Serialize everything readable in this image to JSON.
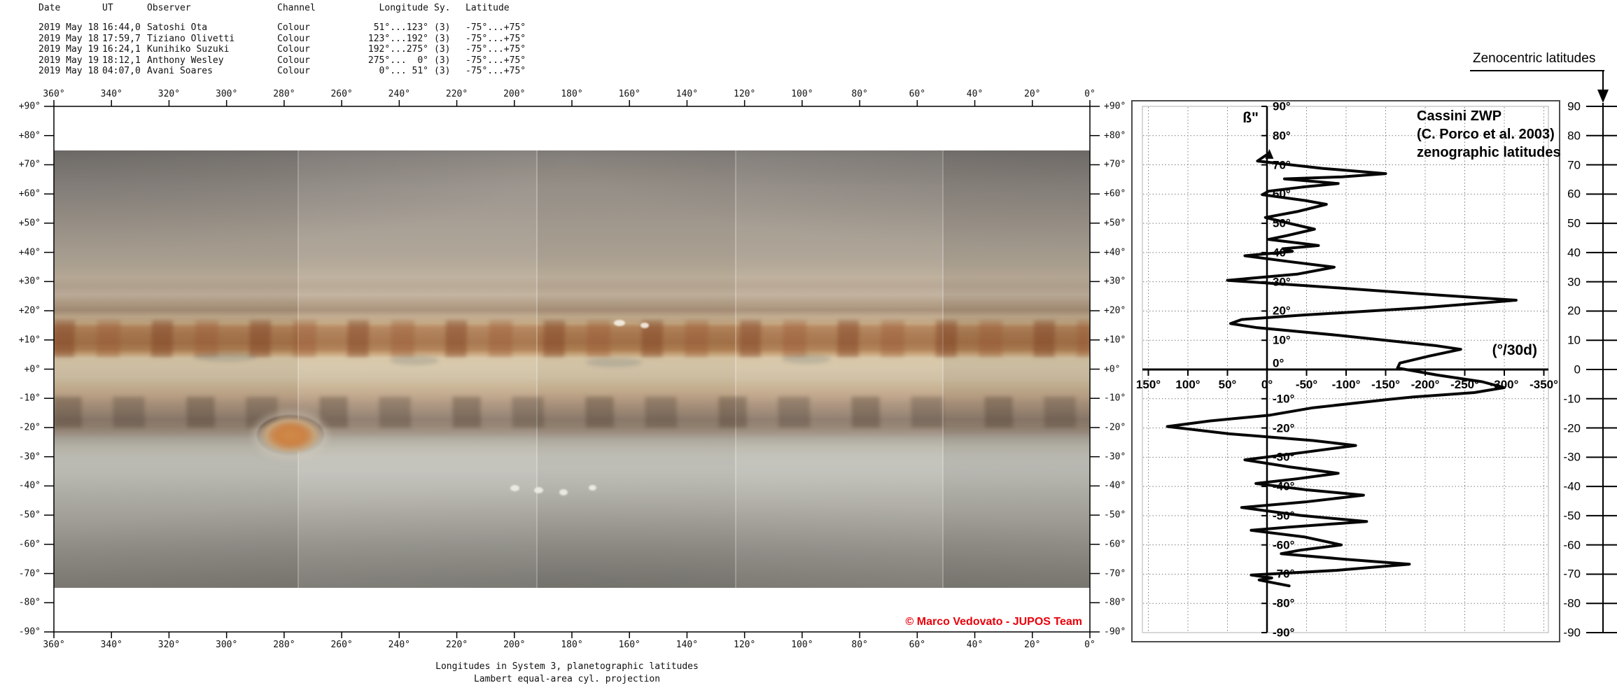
{
  "observations": {
    "headers": [
      "Date",
      "UT",
      "Observer",
      "Channel",
      "Longitude",
      "Sy.",
      "Latitude"
    ],
    "rows": [
      [
        "2019 May 18",
        "16:44,0",
        "Satoshi Ota",
        "Colour",
        " 51°...123°",
        "(3)",
        "-75°...+75°"
      ],
      [
        "2019 May 18",
        "17:59,7",
        "Tiziano Olivetti",
        "Colour",
        "123°...192°",
        "(3)",
        "-75°...+75°"
      ],
      [
        "2019 May 19",
        "16:24,1",
        "Kunihiko Suzuki",
        "Colour",
        "192°...275°",
        "(3)",
        "-75°...+75°"
      ],
      [
        "2019 May 19",
        "18:12,1",
        "Anthony Wesley",
        "Colour",
        "275°...  0°",
        "(3)",
        "-75°...+75°"
      ],
      [
        "2019 May 18",
        "04:07,0",
        "Avani Soares",
        "Colour",
        "  0°... 51°",
        "(3)",
        "-75°...+75°"
      ]
    ]
  },
  "map": {
    "longitude_labels": [
      "360°",
      "340°",
      "320°",
      "300°",
      "280°",
      "260°",
      "240°",
      "220°",
      "200°",
      "180°",
      "160°",
      "140°",
      "120°",
      "100°",
      "80°",
      "60°",
      "40°",
      "20°",
      "0°"
    ],
    "latitude_labels": [
      "+90°",
      "+80°",
      "+70°",
      "+60°",
      "+50°",
      "+40°",
      "+30°",
      "+20°",
      "+10°",
      "+0°",
      "-10°",
      "-20°",
      "-30°",
      "-40°",
      "-50°",
      "-60°",
      "-70°",
      "-80°",
      "-90°"
    ],
    "copyright": "© Marco Vedovato - JUPOS Team",
    "copyright_color": "#e8000a",
    "caption_line1": "Longitudes in System 3, planetographic latitudes",
    "caption_line2": "Lambert equal-area cyl. projection"
  },
  "chart_data": {
    "type": "line",
    "title": "Cassini ZWP (C. Porco et al. 2003) zenographic latitudes",
    "title_lines": [
      "Cassini ZWP",
      "(C. Porco et al. 2003)",
      "zenographic latitudes"
    ],
    "axis_symbol": "ß\"",
    "unit_label": "(°/30d)",
    "x_ticks": [
      150,
      100,
      50,
      0,
      -50,
      -100,
      -150,
      -200,
      -250,
      -300,
      -350
    ],
    "x_tick_labels": [
      "150°",
      "100°",
      "50°",
      "0°",
      "-50°",
      "-100°",
      "-150°",
      "-200°",
      "-250°",
      "-300°",
      "-350°"
    ],
    "xlim": [
      150,
      -350
    ],
    "ylim": [
      90,
      -90
    ],
    "grid": true,
    "lat_tick_labels": [
      "90°",
      "80°",
      "70°",
      "60°",
      "50°",
      "40°",
      "30°",
      "20°",
      "10°",
      "0°",
      "-10°",
      "-20°",
      "-30°",
      "-40°",
      "-50°",
      "-60°",
      "-70°",
      "-80°",
      "-90°"
    ],
    "right_scale": {
      "title": "Zenocentric latitudes",
      "labels": [
        "90",
        "80",
        "70",
        "60",
        "50",
        "40",
        "30",
        "20",
        "10",
        "0",
        "-10",
        "-20",
        "-30",
        "-40",
        "-50",
        "-60",
        "-70",
        "-80",
        "-90"
      ]
    },
    "series": [
      {
        "name": "Cassini ZWP",
        "points_u_lat": [
          [
            -3,
            74
          ],
          [
            4,
            72.8
          ],
          [
            12,
            71.3
          ],
          [
            -70,
            68.8
          ],
          [
            -150,
            67
          ],
          [
            -95,
            65.9
          ],
          [
            -22,
            65.2
          ],
          [
            -90,
            63.6
          ],
          [
            -45,
            62.4
          ],
          [
            -2,
            61
          ],
          [
            6,
            59.8
          ],
          [
            -48,
            57.8
          ],
          [
            -75,
            56.5
          ],
          [
            -38,
            54
          ],
          [
            2,
            52
          ],
          [
            -28,
            50
          ],
          [
            -60,
            48
          ],
          [
            -25,
            45.8
          ],
          [
            -2,
            44.5
          ],
          [
            -48,
            43
          ],
          [
            -65,
            42.4
          ],
          [
            -20,
            41.3
          ],
          [
            -32,
            40.4
          ],
          [
            28,
            38.9
          ],
          [
            -28,
            36.9
          ],
          [
            -85,
            35
          ],
          [
            -38,
            32.6
          ],
          [
            50,
            30.5
          ],
          [
            -90,
            27.9
          ],
          [
            -220,
            25.4
          ],
          [
            -315,
            23.7
          ],
          [
            -190,
            21
          ],
          [
            -45,
            18.6
          ],
          [
            32,
            17.1
          ],
          [
            46,
            15.7
          ],
          [
            12,
            14.3
          ],
          [
            -90,
            11.7
          ],
          [
            -160,
            9.7
          ],
          [
            -212,
            8.2
          ],
          [
            -245,
            6.9
          ],
          [
            -205,
            4.6
          ],
          [
            -168,
            2.2
          ],
          [
            -165,
            0.5
          ],
          [
            -215,
            -1.9
          ],
          [
            -272,
            -4.2
          ],
          [
            -300,
            -6.2
          ],
          [
            -262,
            -7.9
          ],
          [
            -185,
            -9.4
          ],
          [
            -155,
            -10.2
          ],
          [
            -58,
            -13.1
          ],
          [
            -4,
            -15.6
          ],
          [
            72,
            -17.6
          ],
          [
            126,
            -19.5
          ],
          [
            48,
            -22
          ],
          [
            -58,
            -24.3
          ],
          [
            -112,
            -26
          ],
          [
            -48,
            -28.3
          ],
          [
            28,
            -30.9
          ],
          [
            -28,
            -33.3
          ],
          [
            -90,
            -35.5
          ],
          [
            -38,
            -37.4
          ],
          [
            14,
            -39
          ],
          [
            -48,
            -41.1
          ],
          [
            -122,
            -43
          ],
          [
            -48,
            -45.3
          ],
          [
            32,
            -47.2
          ],
          [
            -42,
            -49.9
          ],
          [
            -126,
            -52
          ],
          [
            -28,
            -53.9
          ],
          [
            20,
            -55
          ],
          [
            -48,
            -57.3
          ],
          [
            -94,
            -60
          ],
          [
            -42,
            -61.8
          ],
          [
            -18,
            -63
          ],
          [
            -98,
            -64.9
          ],
          [
            -180,
            -66.6
          ],
          [
            -88,
            -68.7
          ],
          [
            20,
            -70.3
          ],
          [
            -6,
            -71.3
          ],
          [
            10,
            -72
          ],
          [
            -28,
            -74
          ]
        ]
      }
    ]
  }
}
